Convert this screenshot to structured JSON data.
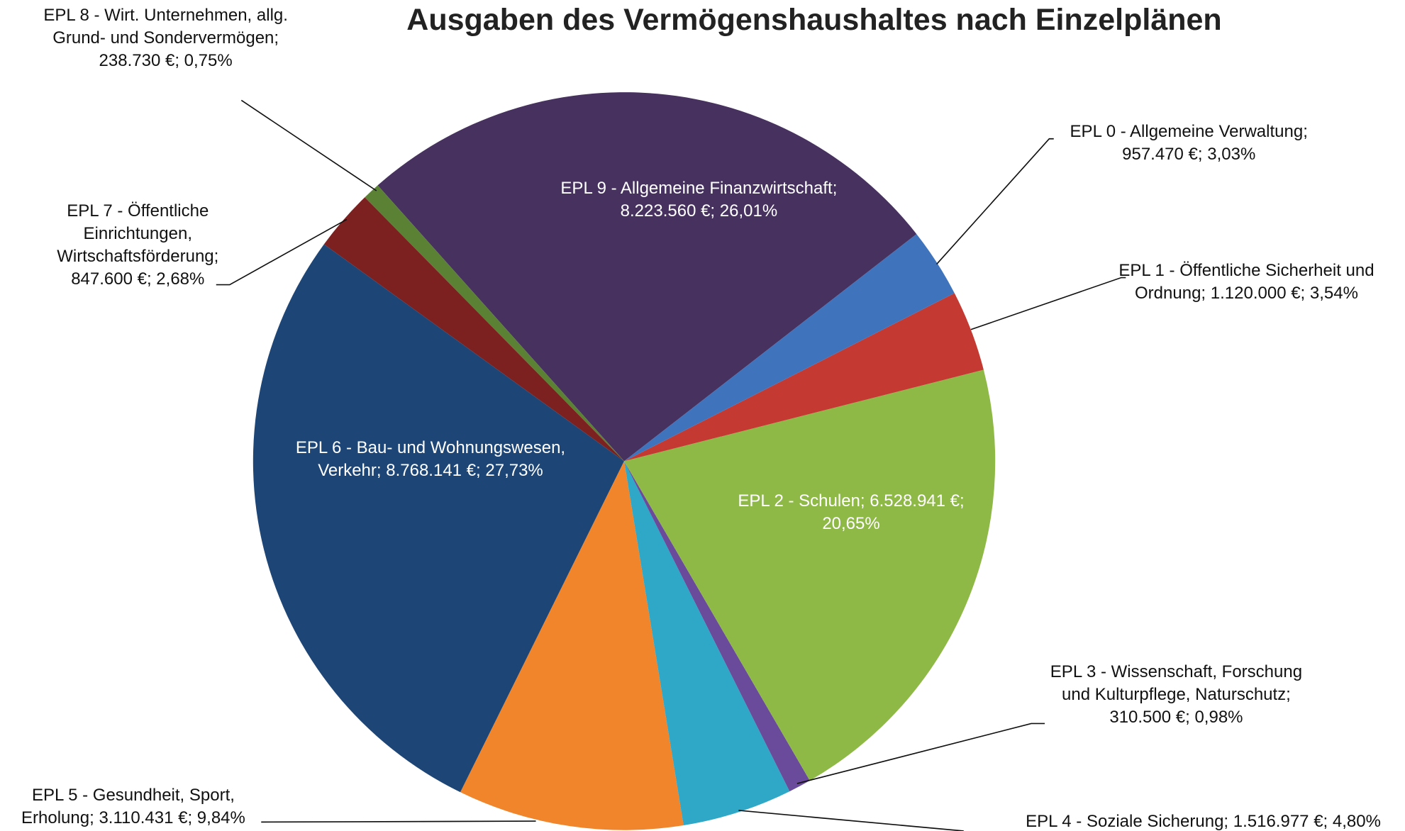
{
  "chart_data": {
    "type": "pie",
    "title": "Ausgaben des Vermögenshaushaltes nach Einzelplänen",
    "categories": [
      "EPL 0 - Allgemeine Verwaltung;",
      "EPL 1 - Öffentliche Sicherheit und Ordnung;",
      "EPL 2 - Schulen;",
      "EPL 3 - Wissenschaft, Forschung und Kulturpflege, Naturschutz;",
      "EPL 4 - Soziale Sicherung;",
      "EPL 5 - Gesundheit, Sport, Erholung;",
      "EPL 6 - Bau- und Wohnungswesen, Verkehr;",
      "EPL 7 - Öffentliche Einrichtungen, Wirtschaftsförderung;",
      "EPL 8 - Wirt. Unternehmen, allg. Grund- und Sondervermögen;",
      "EPL 9 - Allgemeine Finanzwirtschaft;"
    ],
    "values": [
      957470,
      1120000,
      6528941,
      310500,
      1516977,
      3110431,
      8768141,
      847600,
      238730,
      8223560
    ],
    "value_labels": [
      "957.470 €;",
      "1.120.000 €;",
      "6.528.941 €;",
      "310.500 €;",
      "1.516.977 €;",
      "3.110.431 €;",
      "8.768.141 €;",
      "847.600 €;",
      "238.730 €;",
      "8.223.560 €;"
    ],
    "percents": [
      3.03,
      3.54,
      20.65,
      0.98,
      4.8,
      9.84,
      27.73,
      2.68,
      0.75,
      26.01
    ],
    "percent_labels": [
      "3,03%",
      "3,54%",
      "20,65%",
      "0,98%",
      "4,80%",
      "9,84%",
      "27,73%",
      "2,68%",
      "0,75%",
      "26,01%"
    ],
    "colors": [
      "#3f74bd",
      "#c43a32",
      "#8fb946",
      "#6a4b9b",
      "#2fa8c8",
      "#f0852b",
      "#1d4677",
      "#7c2020",
      "#5b8134",
      "#46315f"
    ]
  }
}
